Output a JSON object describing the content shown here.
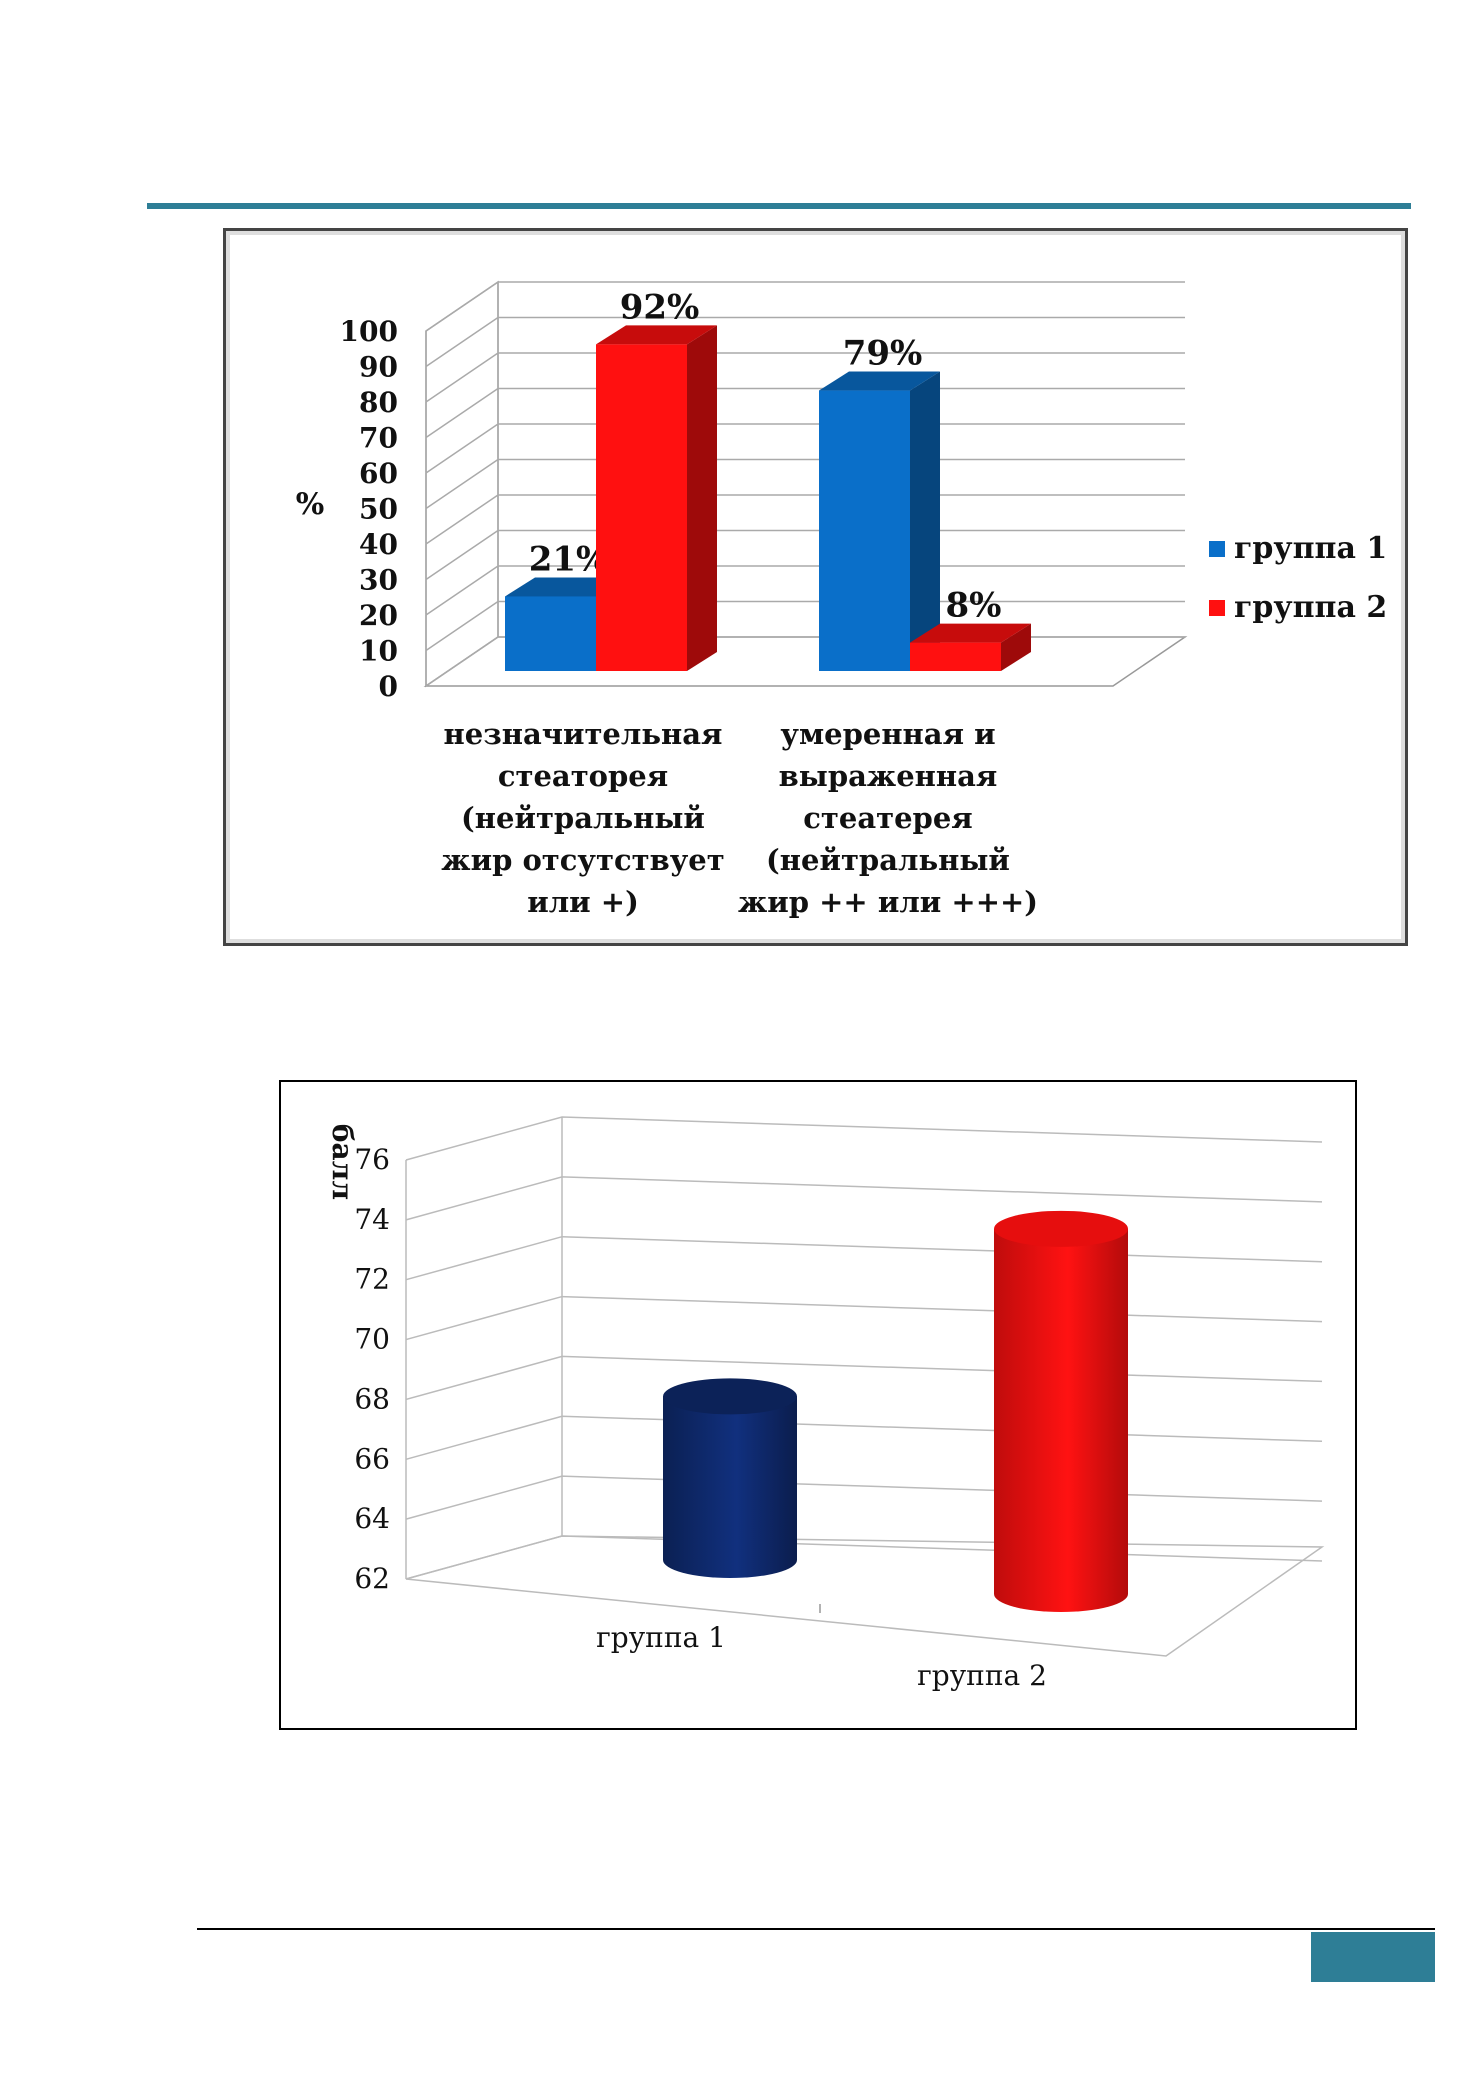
{
  "colors": {
    "accent_teal": "#2e7e96",
    "group1_blue": "#0a6fc9",
    "group2_red": "#ff1010",
    "group1_navy": "#0f2a6e"
  },
  "chart_data": [
    {
      "type": "bar",
      "title": "",
      "ylabel": "%",
      "xlabel": "",
      "ylim": [
        0,
        100
      ],
      "yticks": [
        "0",
        "10",
        "20",
        "30",
        "40",
        "50",
        "60",
        "70",
        "80",
        "90",
        "100"
      ],
      "categories": [
        [
          "незначительная",
          "стеаторея",
          "(нейтральный",
          "жир отсутствует",
          "или +)"
        ],
        [
          "умеренная и",
          "выраженная",
          "стеатерея",
          "(нейтральный",
          "жир ++ или +++)"
        ]
      ],
      "series": [
        {
          "name": "группа 1",
          "values": [
            21,
            79
          ],
          "labels": [
            "21%",
            "79%"
          ]
        },
        {
          "name": "группа 2",
          "values": [
            92,
            8
          ],
          "labels": [
            "92%",
            "8%"
          ]
        }
      ],
      "legend_position": "right",
      "style": "3d-clustered-bar",
      "grid": true
    },
    {
      "type": "bar",
      "title": "",
      "ylabel": "балл",
      "xlabel": "",
      "ylim": [
        62,
        76
      ],
      "yticks": [
        "62",
        "64",
        "66",
        "68",
        "70",
        "72",
        "74",
        "76"
      ],
      "categories": [
        "группа 1",
        "группа 2"
      ],
      "values": [
        67.6,
        74.5
      ],
      "style": "3d-cylinder",
      "grid": true
    }
  ]
}
